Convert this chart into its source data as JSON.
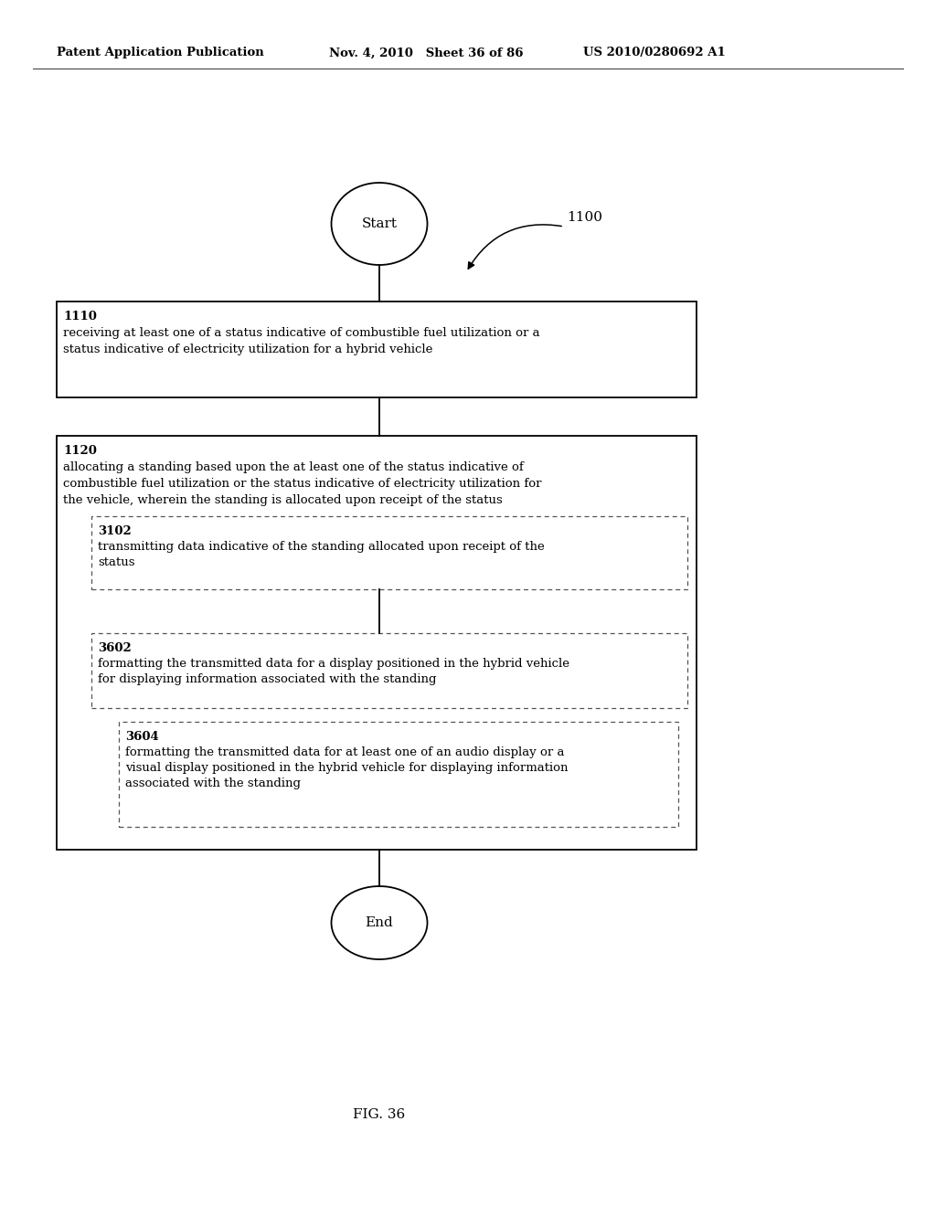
{
  "bg_color": "#ffffff",
  "header_left": "Patent Application Publication",
  "header_mid": "Nov. 4, 2010   Sheet 36 of 86",
  "header_right": "US 2010/0280692 A1",
  "fig_label": "FIG. 36",
  "diagram_label": "1100",
  "start_label": "Start",
  "end_label": "End",
  "box1_id": "1110",
  "box1_line1": "receiving at least one of a status indicative of combustible fuel utilization or a",
  "box1_line2": "status indicative of electricity utilization for a hybrid vehicle",
  "box2_id": "1120",
  "box2_line1": "allocating a standing based upon the at least one of the status indicative of",
  "box2_line2": "combustible fuel utilization or the status indicative of electricity utilization for",
  "box2_line3": "the vehicle, wherein the standing is allocated upon receipt of the status",
  "box3_id": "3102",
  "box3_line1": "transmitting data indicative of the standing allocated upon receipt of the",
  "box3_line2": "status",
  "box4_id": "3602",
  "box4_line1": "formatting the transmitted data for a display positioned in the hybrid vehicle",
  "box4_line2": "for displaying information associated with the standing",
  "box5_id": "3604",
  "box5_line1": "formatting the transmitted data for at least one of an audio display or a",
  "box5_line2": "visual display positioned in the hybrid vehicle for displaying information",
  "box5_line3": "associated with the standing",
  "font_size_header": 9.5,
  "font_size_body": 9.5,
  "font_size_id": 9.5,
  "font_size_terminal": 11,
  "font_size_fig": 11
}
